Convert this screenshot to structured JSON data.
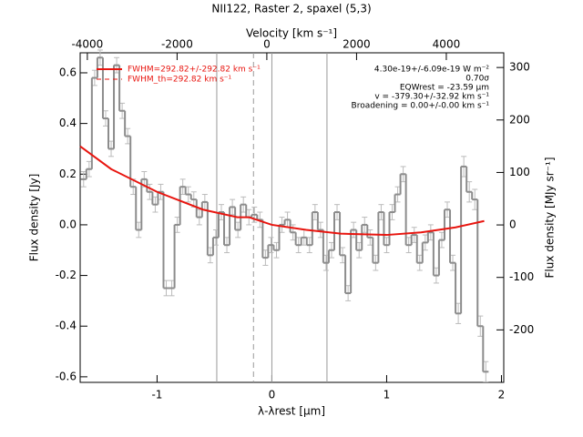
{
  "chart_data": {
    "type": "line",
    "title": "NII122, Raster 2, spaxel (5,3)",
    "xlabel": "λ-λrest [μm]",
    "ylabel": "Flux density [Jy]",
    "x2label": "Velocity [km s⁻¹]",
    "y2label": "Flux density [MJy sr⁻¹]",
    "xlim": [
      -1.67,
      2.02
    ],
    "ylim": [
      -0.622,
      0.679
    ],
    "x2lim": [
      -4160,
      5280
    ],
    "y2lim": [
      -300,
      328
    ],
    "xticks": [
      -1,
      0,
      1,
      2
    ],
    "yticks": [
      -0.6,
      -0.4,
      -0.2,
      {
        "value": 0,
        "label": "0.0"
      },
      0.2,
      0.4,
      0.6
    ],
    "x2ticks": [
      -4000,
      -2000,
      0,
      2000,
      4000
    ],
    "y2ticks": [
      -200,
      -100,
      0,
      100,
      200,
      300
    ],
    "vlines": [
      {
        "x": -0.48,
        "style": "solid"
      },
      {
        "x": -0.16,
        "style": "dashed"
      },
      {
        "x": 0,
        "style": "solid"
      },
      {
        "x": 0.48,
        "style": "solid"
      }
    ],
    "annotations": [
      "4.30e-19+/-6.09e-19 W m⁻²",
      "0.70σ",
      "EQWrest = -23.59 μm",
      "v = -379.30+/-32.92 km s⁻¹",
      "Broadening = 0.00+/-0.00 km s⁻¹"
    ],
    "series": [
      {
        "name": "Spectrum",
        "color": "#8c8c8c",
        "style": "steps",
        "x": [
          -1.64,
          -1.592,
          -1.544,
          -1.496,
          -1.448,
          -1.4,
          -1.352,
          -1.304,
          -1.256,
          -1.208,
          -1.16,
          -1.112,
          -1.064,
          -1.016,
          -0.968,
          -0.92,
          -0.872,
          -0.824,
          -0.776,
          -0.728,
          -0.68,
          -0.632,
          -0.584,
          -0.536,
          -0.488,
          -0.44,
          -0.392,
          -0.344,
          -0.296,
          -0.248,
          -0.2,
          -0.152,
          -0.104,
          -0.056,
          -0.008,
          0.04,
          0.088,
          0.136,
          0.184,
          0.232,
          0.28,
          0.328,
          0.376,
          0.424,
          0.472,
          0.52,
          0.568,
          0.616,
          0.664,
          0.712,
          0.76,
          0.808,
          0.856,
          0.904,
          0.952,
          1.0,
          1.048,
          1.096,
          1.144,
          1.192,
          1.24,
          1.288,
          1.336,
          1.384,
          1.432,
          1.48,
          1.528,
          1.576,
          1.624,
          1.672,
          1.72,
          1.768,
          1.816,
          1.864
        ],
        "values": [
          0.18,
          0.22,
          0.58,
          0.66,
          0.42,
          0.3,
          0.63,
          0.45,
          0.35,
          0.15,
          -0.02,
          0.18,
          0.13,
          0.08,
          0.13,
          -0.25,
          -0.25,
          0.0,
          0.15,
          0.12,
          0.1,
          0.03,
          0.09,
          -0.12,
          -0.05,
          0.05,
          -0.08,
          0.07,
          -0.02,
          0.08,
          0.03,
          0.04,
          0.02,
          -0.13,
          -0.08,
          -0.1,
          0.0,
          0.02,
          -0.03,
          -0.08,
          -0.05,
          -0.08,
          0.05,
          -0.02,
          -0.15,
          -0.1,
          0.05,
          -0.12,
          -0.27,
          -0.02,
          -0.1,
          0.0,
          -0.05,
          -0.15,
          0.05,
          -0.08,
          0.05,
          0.12,
          0.2,
          -0.08,
          -0.04,
          -0.15,
          -0.07,
          -0.03,
          -0.2,
          -0.06,
          0.06,
          -0.15,
          -0.35,
          0.23,
          0.13,
          0.1,
          -0.4,
          -0.58
        ],
        "errors": [
          0.03,
          0.03,
          0.03,
          0.03,
          0.03,
          0.03,
          0.03,
          0.03,
          0.03,
          0.03,
          0.03,
          0.03,
          0.03,
          0.03,
          0.03,
          0.03,
          0.03,
          0.03,
          0.03,
          0.03,
          0.03,
          0.03,
          0.03,
          0.03,
          0.03,
          0.03,
          0.03,
          0.03,
          0.03,
          0.03,
          0.03,
          0.03,
          0.03,
          0.03,
          0.03,
          0.03,
          0.03,
          0.03,
          0.03,
          0.03,
          0.03,
          0.03,
          0.03,
          0.03,
          0.03,
          0.03,
          0.03,
          0.03,
          0.03,
          0.03,
          0.03,
          0.03,
          0.03,
          0.03,
          0.03,
          0.03,
          0.03,
          0.03,
          0.03,
          0.03,
          0.03,
          0.03,
          0.03,
          0.03,
          0.03,
          0.03,
          0.03,
          0.03,
          0.04,
          0.04,
          0.04,
          0.04,
          0.04,
          0.04
        ]
      },
      {
        "name": "FWHM=292.82+/-292.82 km s⁻¹",
        "color": "#e8150f",
        "style": "solid",
        "x": [
          -1.67,
          -1.4,
          -1.0,
          -0.6,
          -0.3,
          -0.2,
          0,
          0.3,
          0.6,
          1.0,
          1.3,
          1.6,
          1.85
        ],
        "values": [
          0.31,
          0.22,
          0.13,
          0.06,
          0.03,
          0.03,
          0.0,
          -0.02,
          -0.035,
          -0.04,
          -0.03,
          -0.01,
          0.015
        ]
      },
      {
        "name": "FWHM_th=292.82 km s⁻¹",
        "color": "#e8150f",
        "style": "dashed",
        "x": [],
        "values": []
      }
    ]
  }
}
